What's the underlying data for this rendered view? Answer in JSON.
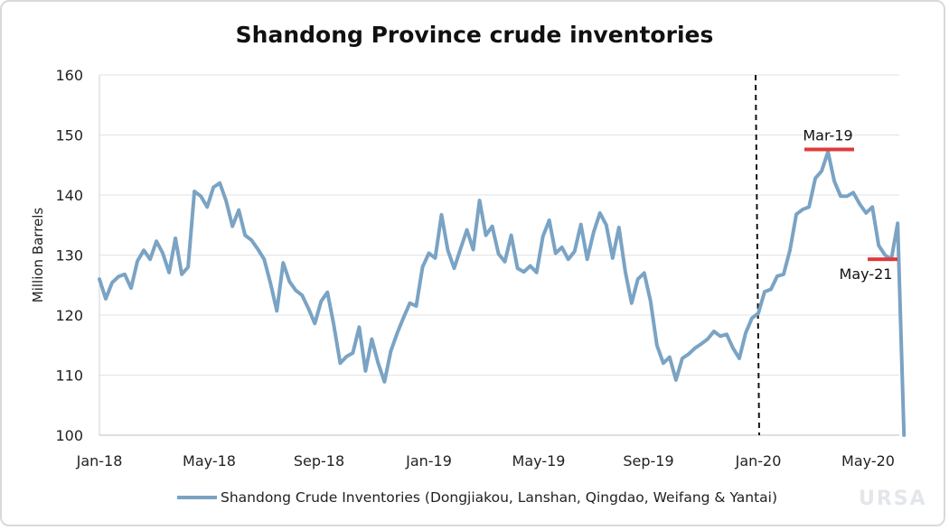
{
  "chart_data": {
    "type": "line",
    "title": "Shandong Province crude inventories",
    "ylabel": "Million Barrels",
    "xlabel": "",
    "ylim": [
      100,
      160
    ],
    "yticks": [
      "100",
      "110",
      "120",
      "130",
      "140",
      "150",
      "160"
    ],
    "xticks": [
      "Jan-18",
      "May-18",
      "Sep-18",
      "Jan-19",
      "May-19",
      "Sep-19",
      "Jan-20",
      "May-20"
    ],
    "grid": "horizontal",
    "legend_position": "bottom",
    "series": [
      {
        "name": "Shandong Crude Inventories (Dongjiakou, Lanshan, Qingdao, Weifang & Yantai)",
        "color": "#7aa3c4",
        "values": [
          126,
          122.7,
          125.4,
          126.4,
          126.8,
          124.5,
          129,
          130.8,
          129.3,
          132.3,
          130.3,
          127.1,
          132.8,
          126.8,
          128,
          140.6,
          139.8,
          138,
          141.3,
          142,
          139,
          134.8,
          137.5,
          133.3,
          132.5,
          131,
          129.3,
          125.3,
          120.7,
          128.7,
          125.6,
          124.1,
          123.3,
          121.1,
          118.6,
          122.3,
          123.8,
          118.3,
          112,
          113.1,
          113.7,
          118,
          110.7,
          116,
          112,
          108.9,
          114,
          117,
          119.6,
          122,
          121.5,
          128,
          130.3,
          129.5,
          136.7,
          130.8,
          127.8,
          131,
          134.2,
          130.9,
          139.1,
          133.3,
          134.8,
          130.2,
          128.9,
          133.3,
          127.8,
          127.2,
          128.2,
          127.1,
          133.1,
          135.8,
          130.3,
          131.3,
          129.3,
          130.6,
          135.1,
          129.3,
          133.8,
          137,
          135,
          129.5,
          134.6,
          127.3,
          122,
          126,
          127,
          122.3,
          115,
          112,
          113,
          109.2,
          112.8,
          113.5,
          114.5,
          115.2,
          116,
          117.3,
          116.5,
          116.8,
          114.5,
          112.8,
          117,
          119.5,
          120.3,
          123.9,
          124.3,
          126.5,
          126.8,
          130.8,
          136.8,
          137.6,
          138,
          142.8,
          144,
          147.2,
          142.3,
          139.8,
          139.8,
          140.4,
          138.5,
          137,
          138,
          131.6,
          130,
          129.3,
          135.3,
          100
        ]
      }
    ],
    "vline_label": "",
    "annotations": [
      {
        "text": "Mar-19",
        "y": 147.6
      },
      {
        "text": "May-21",
        "y": 129.3
      }
    ]
  },
  "brand": "URSA"
}
